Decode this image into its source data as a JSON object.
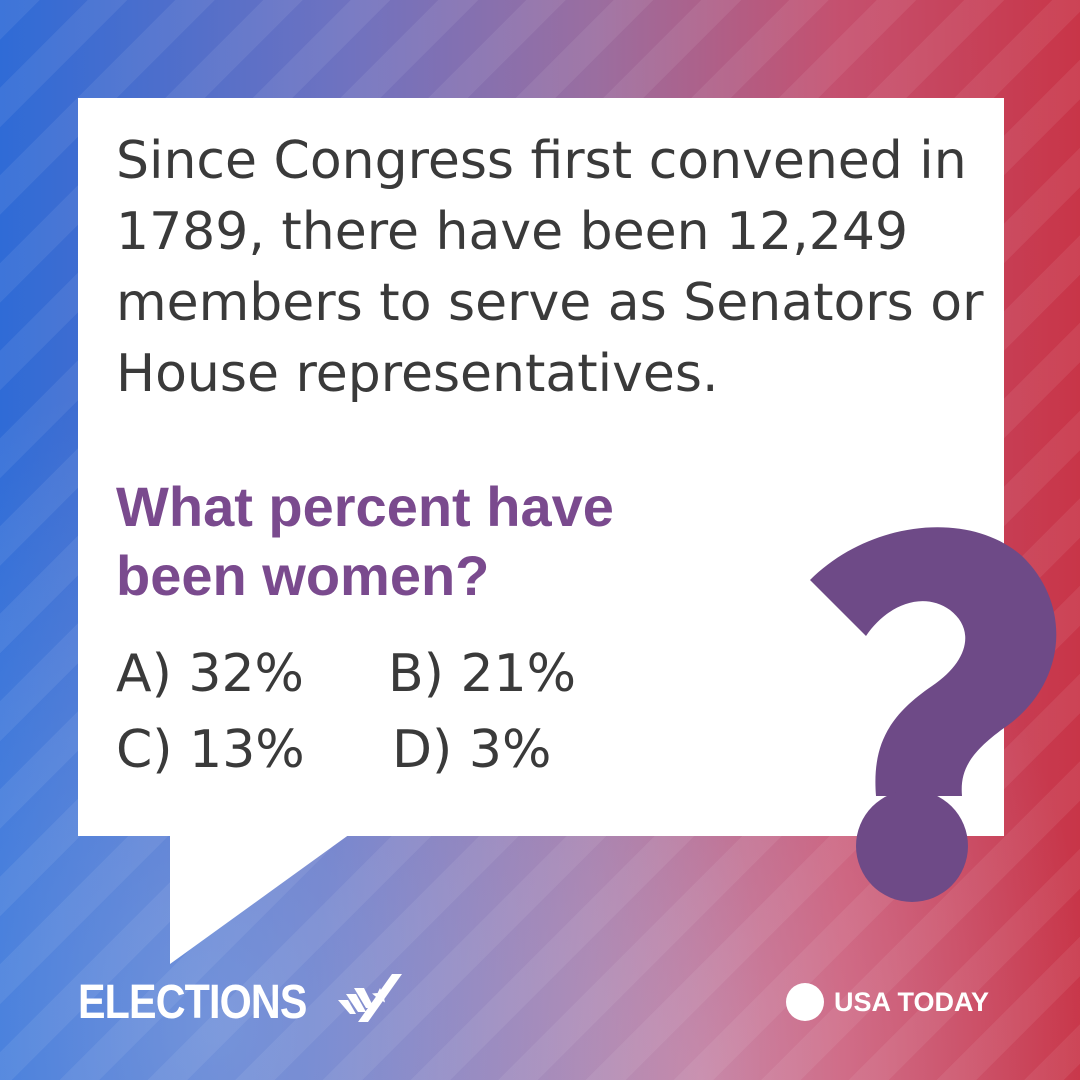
{
  "question": {
    "text": "Since Congress first convened in 1789, there have been 12,249 members to serve as Senators or House representatives.",
    "highlight": "What percent have been women?"
  },
  "answers": {
    "a": "A) 32%",
    "b": "B) 21%",
    "c": "C) 13%",
    "d": "D) 3%"
  },
  "branding": {
    "elections": "ELECTIONS",
    "publisher": "USA TODAY"
  },
  "colors": {
    "accent": "#7a4a8e",
    "text": "#3a3a3a",
    "card": "#ffffff"
  },
  "icons": [
    "question-mark-icon",
    "check-icon",
    "logo-dot-icon"
  ]
}
